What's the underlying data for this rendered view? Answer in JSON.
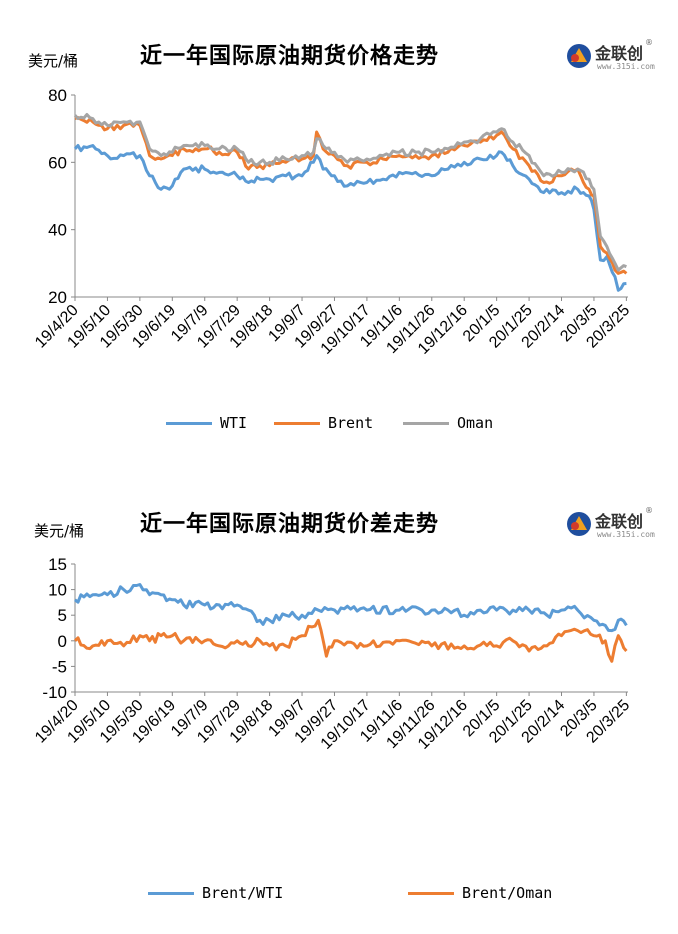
{
  "charts": [
    {
      "unit": "美元/桶",
      "title": "近一年国际原油期货价格走势",
      "logo": {
        "name": "金联创",
        "sub": "www.315i.com"
      },
      "legend": [
        "WTI",
        "Brent",
        "Oman"
      ],
      "colors": {
        "WTI": "#5B9BD5",
        "Brent": "#ED7D31",
        "Oman": "#A5A5A5"
      }
    },
    {
      "unit": "美元/桶",
      "title": "近一年国际原油期货价差走势",
      "logo": {
        "name": "金联创",
        "sub": "www.315i.com"
      },
      "legend": [
        "Brent/WTI",
        "Brent/Oman"
      ],
      "colors": {
        "Brent/WTI": "#5B9BD5",
        "Brent/Oman": "#ED7D31"
      }
    }
  ],
  "chart_data": [
    {
      "type": "line",
      "title": "近一年国际原油期货价格走势",
      "ylabel": "美元/桶",
      "ylim": [
        20,
        80
      ],
      "yticks": [
        20,
        40,
        60,
        80
      ],
      "x_start": "2019-04-20",
      "x_end": "2020-03-26",
      "xticks": [
        "19/4/20",
        "19/5/10",
        "19/5/30",
        "19/6/19",
        "19/7/9",
        "19/7/29",
        "19/8/18",
        "19/9/7",
        "19/9/27",
        "19/10/17",
        "19/11/6",
        "19/11/26",
        "19/12/16",
        "20/1/5",
        "20/1/25",
        "20/2/14",
        "20/3/5",
        "20/3/25"
      ],
      "legend_position": "bottom",
      "series": [
        {
          "name": "WTI",
          "color": "#5B9BD5",
          "dates": [
            "2019-04-20",
            "2019-05-01",
            "2019-05-10",
            "2019-05-20",
            "2019-05-30",
            "2019-06-05",
            "2019-06-12",
            "2019-06-19",
            "2019-06-26",
            "2019-07-09",
            "2019-07-18",
            "2019-07-29",
            "2019-08-05",
            "2019-08-12",
            "2019-08-18",
            "2019-08-28",
            "2019-09-07",
            "2019-09-14",
            "2019-09-16",
            "2019-09-20",
            "2019-09-27",
            "2019-10-05",
            "2019-10-17",
            "2019-10-27",
            "2019-11-06",
            "2019-11-16",
            "2019-11-26",
            "2019-12-06",
            "2019-12-16",
            "2019-12-26",
            "2020-01-05",
            "2020-01-08",
            "2020-01-15",
            "2020-01-25",
            "2020-02-03",
            "2020-02-14",
            "2020-02-24",
            "2020-03-02",
            "2020-03-05",
            "2020-03-09",
            "2020-03-13",
            "2020-03-18",
            "2020-03-20",
            "2020-03-25"
          ],
          "values": [
            64,
            65,
            62,
            62,
            62,
            56,
            52,
            53,
            58,
            58,
            57,
            56,
            54,
            55,
            55,
            56,
            56,
            60,
            62,
            58,
            56,
            53,
            54,
            55,
            57,
            57,
            56,
            58,
            60,
            61,
            62,
            63,
            59,
            55,
            51,
            51,
            52,
            50,
            46,
            31,
            32,
            26,
            22,
            24
          ]
        },
        {
          "name": "Brent",
          "color": "#ED7D31",
          "dates": [
            "2019-04-20",
            "2019-05-01",
            "2019-05-10",
            "2019-05-20",
            "2019-05-30",
            "2019-06-05",
            "2019-06-12",
            "2019-06-19",
            "2019-06-26",
            "2019-07-09",
            "2019-07-18",
            "2019-07-29",
            "2019-08-05",
            "2019-08-12",
            "2019-08-18",
            "2019-08-28",
            "2019-09-07",
            "2019-09-14",
            "2019-09-16",
            "2019-09-20",
            "2019-09-27",
            "2019-10-05",
            "2019-10-17",
            "2019-10-27",
            "2019-11-06",
            "2019-11-16",
            "2019-11-26",
            "2019-12-06",
            "2019-12-16",
            "2019-12-26",
            "2020-01-05",
            "2020-01-08",
            "2020-01-15",
            "2020-01-25",
            "2020-02-03",
            "2020-02-14",
            "2020-02-24",
            "2020-03-02",
            "2020-03-05",
            "2020-03-09",
            "2020-03-13",
            "2020-03-18",
            "2020-03-20",
            "2020-03-25"
          ],
          "values": [
            73,
            72,
            70,
            71,
            71,
            62,
            61,
            62,
            64,
            64,
            63,
            63,
            58,
            59,
            59,
            60,
            61,
            62,
            69,
            64,
            62,
            59,
            60,
            61,
            62,
            62,
            62,
            63,
            65,
            66,
            68,
            69,
            64,
            59,
            54,
            56,
            58,
            52,
            50,
            35,
            33,
            28,
            27,
            27
          ]
        },
        {
          "name": "Oman",
          "color": "#A5A5A5",
          "dates": [
            "2019-04-20",
            "2019-05-01",
            "2019-05-10",
            "2019-05-20",
            "2019-05-30",
            "2019-06-05",
            "2019-06-12",
            "2019-06-19",
            "2019-06-26",
            "2019-07-09",
            "2019-07-18",
            "2019-07-29",
            "2019-08-05",
            "2019-08-12",
            "2019-08-18",
            "2019-08-28",
            "2019-09-07",
            "2019-09-14",
            "2019-09-16",
            "2019-09-20",
            "2019-09-27",
            "2019-10-05",
            "2019-10-17",
            "2019-10-27",
            "2019-11-06",
            "2019-11-16",
            "2019-11-26",
            "2019-12-06",
            "2019-12-16",
            "2019-12-26",
            "2020-01-05",
            "2020-01-08",
            "2020-01-15",
            "2020-01-25",
            "2020-02-03",
            "2020-02-14",
            "2020-02-24",
            "2020-03-02",
            "2020-03-05",
            "2020-03-09",
            "2020-03-13",
            "2020-03-18",
            "2020-03-20",
            "2020-03-25"
          ],
          "values": [
            74,
            73,
            71,
            72,
            72,
            64,
            62,
            63,
            65,
            65,
            64,
            64,
            60,
            60,
            60,
            61,
            62,
            63,
            67,
            65,
            63,
            60,
            61,
            62,
            63,
            63,
            63,
            64,
            66,
            67,
            69,
            70,
            66,
            62,
            56,
            57,
            58,
            55,
            52,
            38,
            35,
            30,
            28,
            29
          ]
        }
      ]
    },
    {
      "type": "line",
      "title": "近一年国际原油期货价差走势",
      "ylabel": "美元/桶",
      "ylim": [
        -10,
        15
      ],
      "yticks": [
        -10,
        -5,
        0,
        5,
        10,
        15
      ],
      "x_start": "2019-04-20",
      "x_end": "2020-03-26",
      "xticks": [
        "19/4/20",
        "19/5/10",
        "19/5/30",
        "19/6/19",
        "19/7/9",
        "19/7/29",
        "19/8/18",
        "19/9/7",
        "19/9/27",
        "19/10/17",
        "19/11/6",
        "19/11/26",
        "19/12/16",
        "20/1/5",
        "20/1/25",
        "20/2/14",
        "20/3/5",
        "20/3/25"
      ],
      "legend_position": "bottom",
      "series": [
        {
          "name": "Brent/WTI",
          "color": "#5B9BD5",
          "dates": [
            "2019-04-20",
            "2019-05-01",
            "2019-05-10",
            "2019-05-20",
            "2019-05-30",
            "2019-06-05",
            "2019-06-12",
            "2019-06-19",
            "2019-06-26",
            "2019-07-09",
            "2019-07-18",
            "2019-07-29",
            "2019-08-05",
            "2019-08-12",
            "2019-08-18",
            "2019-08-28",
            "2019-09-07",
            "2019-09-17",
            "2019-09-27",
            "2019-10-17",
            "2019-11-06",
            "2019-11-26",
            "2019-12-06",
            "2019-12-16",
            "2019-12-26",
            "2020-01-05",
            "2020-01-15",
            "2020-01-25",
            "2020-02-05",
            "2020-02-14",
            "2020-02-24",
            "2020-03-05",
            "2020-03-12",
            "2020-03-16",
            "2020-03-20",
            "2020-03-25"
          ],
          "values": [
            8,
            9,
            9,
            10,
            11,
            9,
            9,
            8,
            7,
            7,
            7,
            7,
            6,
            4,
            4,
            5,
            5,
            6,
            6,
            6,
            6,
            6,
            6,
            5,
            6,
            6,
            6,
            6,
            5,
            6,
            6,
            4,
            3,
            2,
            4,
            3
          ]
        },
        {
          "name": "Brent/Oman",
          "color": "#ED7D31",
          "dates": [
            "2019-04-20",
            "2019-05-01",
            "2019-05-10",
            "2019-05-20",
            "2019-05-30",
            "2019-06-05",
            "2019-06-12",
            "2019-06-19",
            "2019-06-26",
            "2019-07-09",
            "2019-07-18",
            "2019-07-29",
            "2019-08-05",
            "2019-08-12",
            "2019-08-18",
            "2019-08-28",
            "2019-09-07",
            "2019-09-17",
            "2019-09-22",
            "2019-09-27",
            "2019-10-17",
            "2019-11-06",
            "2019-11-26",
            "2019-12-16",
            "2020-01-05",
            "2020-01-15",
            "2020-01-25",
            "2020-02-05",
            "2020-02-14",
            "2020-02-24",
            "2020-03-05",
            "2020-03-12",
            "2020-03-16",
            "2020-03-20",
            "2020-03-25"
          ],
          "values": [
            0,
            -1,
            0,
            -1,
            1,
            0,
            1,
            1,
            0,
            0,
            -1,
            0,
            -1,
            0,
            -1,
            -1,
            1,
            4,
            -3,
            0,
            -1,
            0,
            -1,
            -1,
            -1,
            0,
            -2,
            -1,
            1,
            2,
            1,
            0,
            -4,
            1,
            -2
          ]
        }
      ]
    }
  ]
}
